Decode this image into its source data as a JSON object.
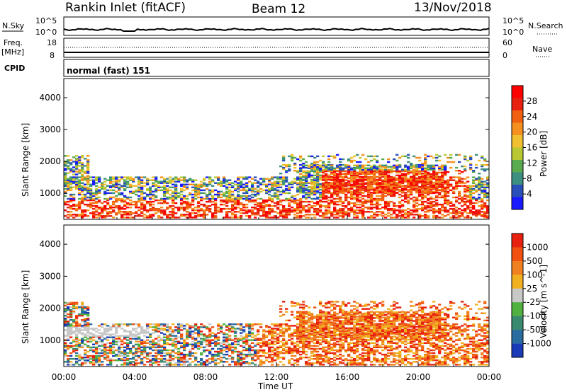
{
  "header": {
    "station": "Rankin Inlet (fitACF)",
    "beam": "Beam 12",
    "date": "13/Nov/2018"
  },
  "aux": {
    "nsky_label": "N.Sky",
    "nsky_top": "10^5",
    "nsky_bottom": "10^0",
    "nsearch_label": "N.Search",
    "nsearch_top": "10^5",
    "nsearch_bottom": "10^0",
    "freq_label": "Freq.",
    "freq_unit": "[MHz]",
    "freq_top": "18",
    "freq_bottom": "8",
    "nave_label": "Nave",
    "nave_top": "60",
    "nave_bottom": "0",
    "cpid_label": "CPID",
    "cpid_value": "normal (fast) 151"
  },
  "chart_data": [
    {
      "type": "heatmap",
      "name": "Power",
      "ylabel": "Slant Range [km]",
      "xlabel": "Time UT",
      "ylim": [
        180,
        4600
      ],
      "yticks": [
        "1000",
        "2000",
        "3000",
        "4000"
      ],
      "xticks": [
        "00:00",
        "04:00",
        "08:00",
        "12:00",
        "16:00",
        "20:00",
        "00:00"
      ],
      "colorbar": {
        "label": "Power [dB]",
        "ticks": [
          "4",
          "8",
          "12",
          "16",
          "20",
          "24",
          "28"
        ],
        "colors": [
          "#1a1aff",
          "#2b4fb8",
          "#3d8f80",
          "#5aaa50",
          "#b8c832",
          "#f0c030",
          "#f59020",
          "#f06010",
          "#e82010",
          "#ff0000"
        ]
      }
    },
    {
      "type": "heatmap",
      "name": "Velocity",
      "ylabel": "Slant Range [km]",
      "xlabel": "Time UT",
      "ylim": [
        180,
        4600
      ],
      "yticks": [
        "1000",
        "2000",
        "3000",
        "4000"
      ],
      "xticks": [
        "00:00",
        "04:00",
        "08:00",
        "12:00",
        "16:00",
        "20:00",
        "00:00"
      ],
      "colorbar": {
        "label": "Velocity [m s^-1]",
        "ticks": [
          "1000",
          "500",
          "100",
          "25",
          "-25",
          "-100",
          "-500",
          "-1000"
        ],
        "colors": [
          "#1a3ab8",
          "#2a6ca0",
          "#3a8a70",
          "#50b040",
          "#c8c8c8",
          "#f0b020",
          "#f08020",
          "#f05010",
          "#e82010"
        ]
      }
    }
  ]
}
